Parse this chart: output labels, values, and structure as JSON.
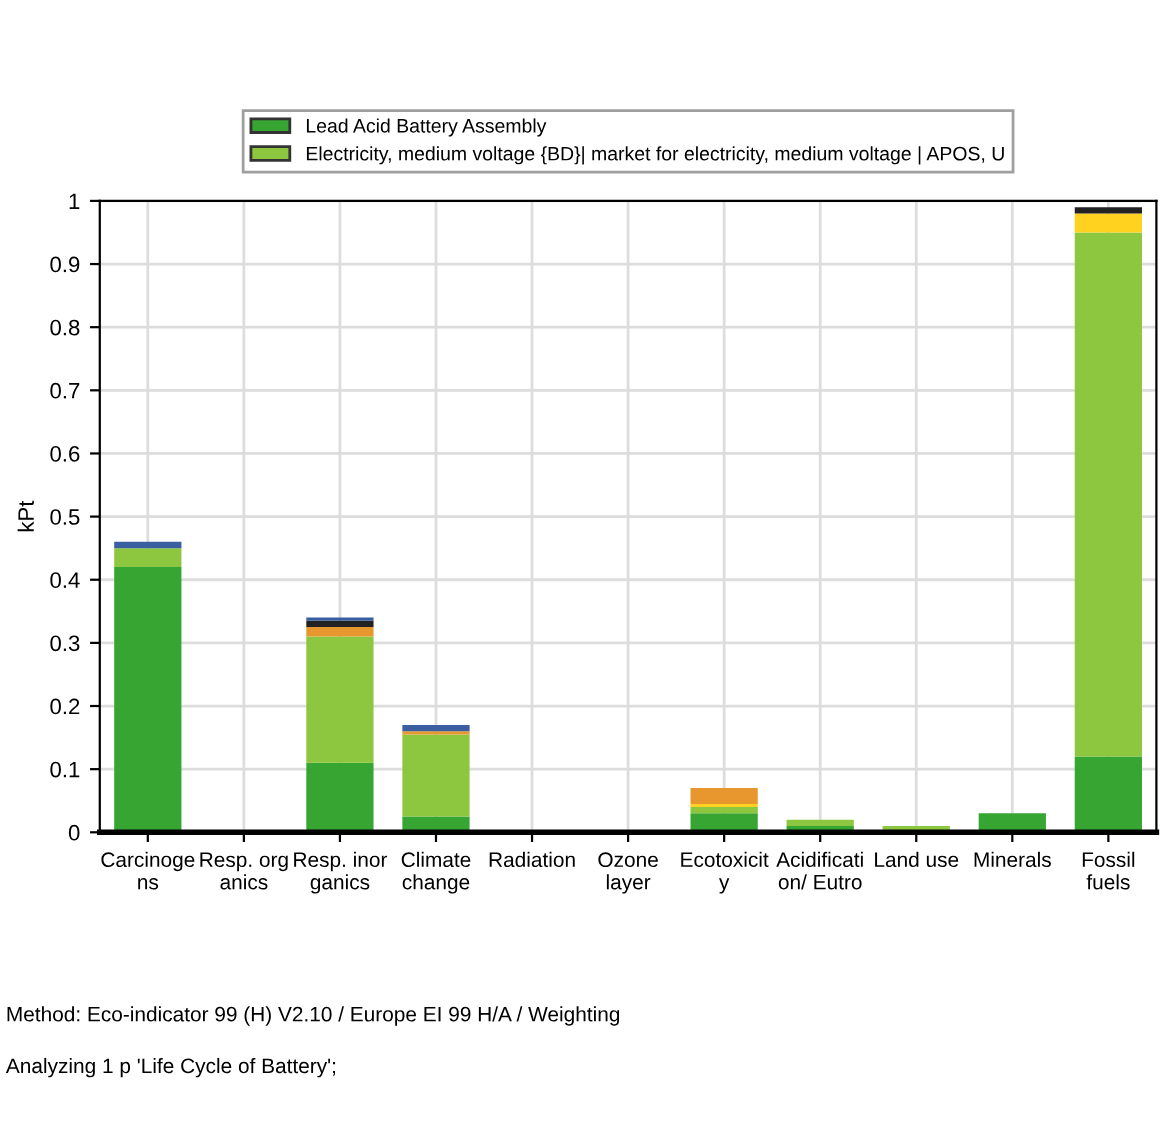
{
  "chart_data": {
    "type": "bar",
    "stacked": true,
    "ylabel": "kPt",
    "categories": [
      "Carcinoge\nns",
      "Resp. org\nanics",
      "Resp. inor\nganics",
      "Climate\nchange",
      "Radiation",
      "Ozone\nlayer",
      "Ecotoxicit\ny",
      "Acidificati\non/ Eutro",
      "Land use",
      "Minerals",
      "Fossil\nfuels"
    ],
    "series": [
      {
        "name": "Lead Acid Battery Assembly",
        "color": "#37a532",
        "values": [
          0.42,
          0.003,
          0.11,
          0.025,
          0.003,
          0.003,
          0.03,
          0.01,
          null,
          0.03,
          0.12
        ]
      },
      {
        "name": "Electricity, medium voltage {BD}| market for electricity, medium voltage | APOS, U",
        "color": "#8dc63f",
        "values": [
          0.03,
          null,
          0.2,
          0.13,
          null,
          null,
          0.01,
          0.01,
          0.01,
          null,
          0.83
        ]
      },
      {
        "color": "#ffd21f",
        "values": [
          null,
          null,
          null,
          null,
          null,
          null,
          0.005,
          null,
          null,
          null,
          0.03
        ]
      },
      {
        "color": "#e8962e",
        "values": [
          null,
          null,
          0.015,
          0.005,
          null,
          null,
          0.025,
          null,
          null,
          null,
          null
        ]
      },
      {
        "color": "#222222",
        "values": [
          null,
          null,
          0.01,
          null,
          null,
          null,
          null,
          null,
          null,
          null,
          0.01
        ]
      },
      {
        "color": "#3a5fa0",
        "values": [
          0.01,
          null,
          0.005,
          0.01,
          null,
          null,
          null,
          null,
          null,
          null,
          null
        ]
      }
    ],
    "ylim": [
      0,
      1
    ],
    "yticks": [
      0,
      0.1,
      0.2,
      0.3,
      0.4,
      0.5,
      0.6,
      0.7,
      0.8,
      0.9,
      1
    ],
    "grid": true,
    "legend": "top",
    "annotations": [
      "Method: Eco-indicator 99 (H) V2.10 / Europe EI 99 H/A / Weighting",
      "Analyzing 1 p 'Life Cycle of Battery';"
    ]
  }
}
